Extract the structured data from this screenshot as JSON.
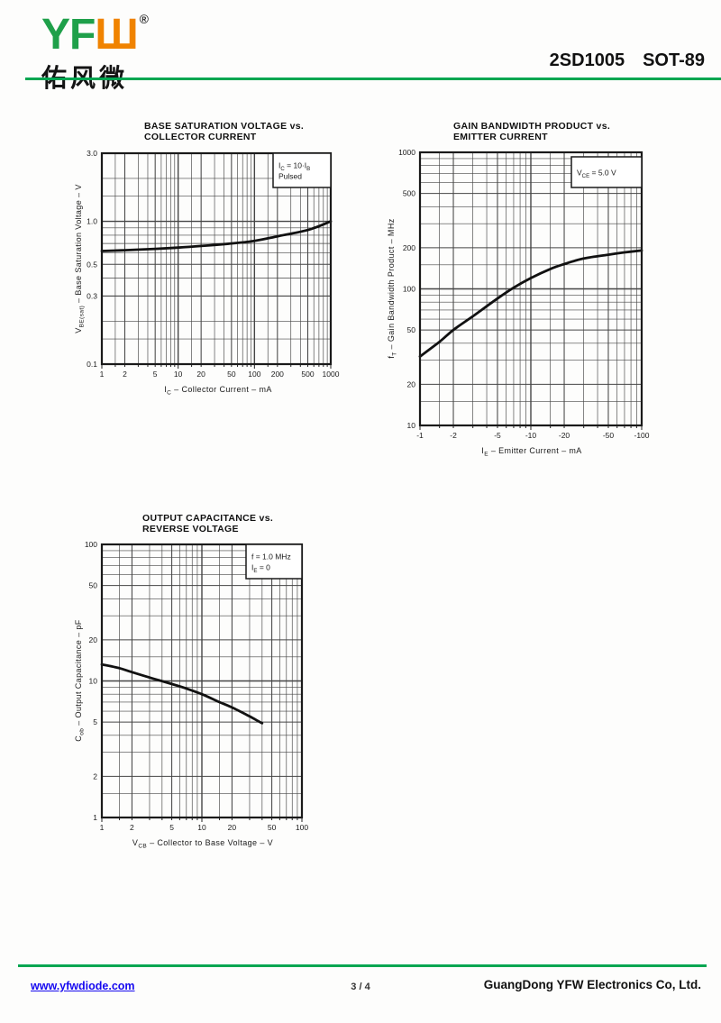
{
  "header": {
    "logo_text_green": "YF",
    "logo_text_orange": "Ш",
    "registered_mark": "®",
    "logo_cn": "佑风微",
    "part_number": "2SD1005",
    "package": "SOT-89",
    "accent_green": "#00a651",
    "logo_green": "#1fa04a",
    "logo_orange": "#f08300"
  },
  "footer": {
    "website": "www.yfwdiode.com",
    "page": "3 / 4",
    "company": "GuangDong YFW Electronics Co, Ltd.",
    "link_color": "#1508f0"
  },
  "chart_data": [
    {
      "type": "line",
      "title_lines": [
        "BASE SATURATION VOLTAGE vs.",
        "COLLECTOR CURRENT"
      ],
      "xlabel": "I~C~ – Collector Current – mA",
      "ylabel": "V~BE(sat)~ – Base Saturation Voltage – V",
      "annotation": [
        "I~C~ = 10·I~B~",
        "Pulsed"
      ],
      "x_scale": "log",
      "y_scale": "log",
      "xlim": [
        1,
        1000
      ],
      "ylim": [
        0.1,
        3.0
      ],
      "x_ticks": [
        "1",
        "2",
        "5",
        "10",
        "20",
        "50",
        "100",
        "200",
        "500",
        "1000"
      ],
      "x_tick_values": [
        1,
        2,
        5,
        10,
        20,
        50,
        100,
        200,
        500,
        1000
      ],
      "y_ticks": [
        "3.0",
        "1.0",
        "0.5",
        "0.3",
        "0.1"
      ],
      "y_tick_values": [
        3.0,
        1.0,
        0.5,
        0.3,
        0.1
      ],
      "grid": true,
      "legend": "none",
      "series": [
        {
          "name": "VBE(sat)",
          "x": [
            1,
            2,
            5,
            10,
            20,
            50,
            100,
            200,
            500,
            1000
          ],
          "y": [
            0.62,
            0.628,
            0.642,
            0.655,
            0.672,
            0.7,
            0.73,
            0.785,
            0.87,
            1.0
          ]
        }
      ]
    },
    {
      "type": "line",
      "title_lines": [
        "GAIN BANDWIDTH PRODUCT vs.",
        "EMITTER CURRENT"
      ],
      "xlabel": "I~E~ – Emitter Current – mA",
      "ylabel": "f~T~ – Gain Bandwidth Product – MHz",
      "annotation": [
        "V~CE~ = 5.0 V"
      ],
      "x_scale": "log",
      "y_scale": "log",
      "xlim": [
        -1,
        -100
      ],
      "ylim": [
        10,
        1000
      ],
      "x_ticks": [
        "-1",
        "-2",
        "-5",
        "-10",
        "-20",
        "-50",
        "-100"
      ],
      "x_tick_values": [
        -1,
        -2,
        -5,
        -10,
        -20,
        -50,
        -100
      ],
      "y_ticks": [
        "1000",
        "500",
        "200",
        "100",
        "50",
        "20",
        "10"
      ],
      "y_tick_values": [
        1000,
        500,
        200,
        100,
        50,
        20,
        10
      ],
      "grid": true,
      "legend": "none",
      "series": [
        {
          "name": "fT",
          "x": [
            -1,
            -1.5,
            -2,
            -3,
            -5,
            -7,
            -10,
            -15,
            -20,
            -30,
            -50,
            -70,
            -100
          ],
          "y": [
            32,
            41,
            50,
            63,
            85,
            102,
            120,
            140,
            152,
            167,
            178,
            185,
            191
          ]
        }
      ]
    },
    {
      "type": "line",
      "title_lines": [
        "OUTPUT CAPACITANCE vs.",
        "REVERSE VOLTAGE"
      ],
      "xlabel": "V~CB~ – Collector to Base Voltage – V",
      "ylabel": "C~ob~ – Output Capacitance – pF",
      "annotation": [
        "f = 1.0 MHz",
        "I~E~ = 0"
      ],
      "x_scale": "log",
      "y_scale": "log",
      "xlim": [
        1,
        100
      ],
      "ylim": [
        1,
        100
      ],
      "x_ticks": [
        "1",
        "2",
        "5",
        "10",
        "20",
        "50",
        "100"
      ],
      "x_tick_values": [
        1,
        2,
        5,
        10,
        20,
        50,
        100
      ],
      "y_ticks": [
        "100",
        "50",
        "20",
        "10",
        "5",
        "2",
        "1"
      ],
      "y_tick_values": [
        100,
        50,
        20,
        10,
        5,
        2,
        1
      ],
      "grid": true,
      "legend": "none",
      "series": [
        {
          "name": "Cob",
          "x": [
            1,
            1.5,
            2,
            3,
            5,
            7,
            10,
            15,
            20,
            30,
            40
          ],
          "y": [
            13.2,
            12.4,
            11.6,
            10.6,
            9.5,
            8.8,
            8.0,
            7.0,
            6.4,
            5.5,
            4.9
          ]
        }
      ]
    }
  ]
}
